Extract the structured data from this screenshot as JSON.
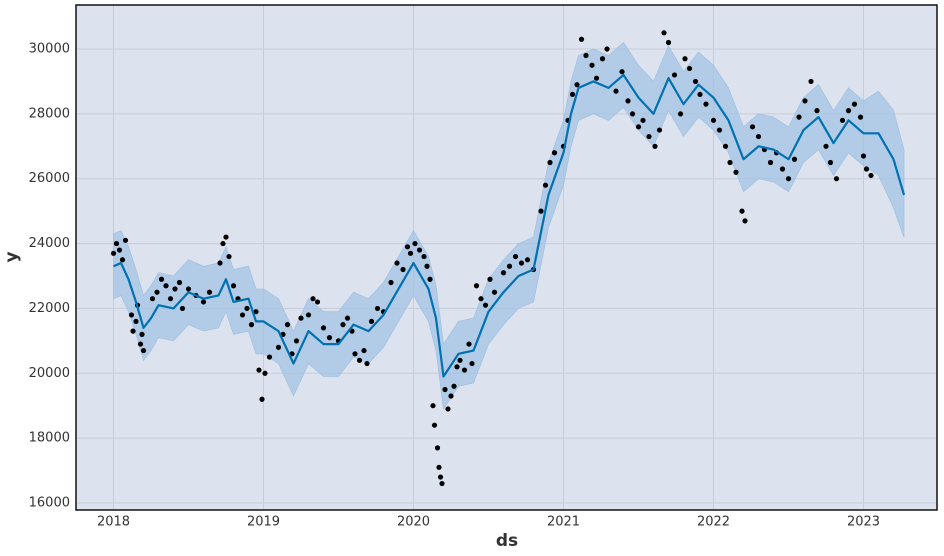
{
  "chart_data": {
    "type": "forecast",
    "x_label": "ds",
    "y_label": "y",
    "xlim": [
      2017.75,
      2023.49
    ],
    "ylim": [
      15784,
      31357
    ],
    "xticks": [
      2018,
      2019,
      2020,
      2021,
      2022,
      2023
    ],
    "yticks": [
      16000,
      18000,
      20000,
      22000,
      24000,
      26000,
      28000,
      30000
    ],
    "grid": true,
    "x": [
      2018.0,
      2018.05,
      2018.1,
      2018.15,
      2018.2,
      2018.25,
      2018.3,
      2018.4,
      2018.5,
      2018.6,
      2018.7,
      2018.75,
      2018.8,
      2018.9,
      2018.95,
      2019.0,
      2019.1,
      2019.2,
      2019.3,
      2019.4,
      2019.5,
      2019.6,
      2019.7,
      2019.8,
      2019.9,
      2020.0,
      2020.1,
      2020.15,
      2020.2,
      2020.3,
      2020.4,
      2020.5,
      2020.6,
      2020.7,
      2020.8,
      2020.9,
      2021.0,
      2021.05,
      2021.1,
      2021.2,
      2021.3,
      2021.4,
      2021.5,
      2021.6,
      2021.7,
      2021.8,
      2021.9,
      2022.0,
      2022.1,
      2022.2,
      2022.3,
      2022.4,
      2022.5,
      2022.6,
      2022.7,
      2022.8,
      2022.9,
      2023.0,
      2023.1,
      2023.2,
      2023.27
    ],
    "series": [
      {
        "role": "yhat",
        "color": "#0072b2",
        "values": [
          23300,
          23400,
          22900,
          22200,
          21400,
          21700,
          22100,
          22000,
          22500,
          22300,
          22400,
          22900,
          22200,
          22300,
          21600,
          21600,
          21300,
          20300,
          21300,
          20900,
          20900,
          21500,
          21300,
          21800,
          22600,
          23400,
          22600,
          21700,
          19900,
          20600,
          20700,
          21900,
          22500,
          23000,
          23200,
          25500,
          26800,
          28000,
          28800,
          29000,
          28800,
          29200,
          28500,
          28000,
          29100,
          28300,
          28900,
          28500,
          27800,
          26600,
          27000,
          26900,
          26600,
          27500,
          27900,
          27100,
          27800,
          27400,
          27400,
          26600,
          25500
        ]
      },
      {
        "role": "upper",
        "color": "#a3c3e3",
        "values": [
          24300,
          24400,
          23900,
          23200,
          22400,
          22700,
          23100,
          23000,
          23500,
          23300,
          23400,
          23900,
          23200,
          23300,
          22600,
          22600,
          22300,
          21300,
          22300,
          21900,
          21900,
          22500,
          22300,
          22800,
          23600,
          24400,
          23600,
          22700,
          20900,
          21600,
          21700,
          22900,
          23500,
          24000,
          24200,
          26500,
          27800,
          29000,
          29800,
          30000,
          29800,
          30200,
          29500,
          29000,
          30100,
          29300,
          29900,
          29500,
          28800,
          27600,
          28000,
          27900,
          27600,
          28500,
          28900,
          28100,
          28800,
          28400,
          28700,
          28100,
          26900
        ]
      },
      {
        "role": "lower",
        "color": "#a3c3e3",
        "values": [
          22300,
          22400,
          21900,
          21200,
          20400,
          20700,
          21100,
          21000,
          21500,
          21300,
          21400,
          21900,
          21200,
          21300,
          20600,
          20600,
          20300,
          19300,
          20300,
          19900,
          19900,
          20500,
          20300,
          20800,
          21600,
          22400,
          21600,
          20700,
          18900,
          19600,
          19700,
          20900,
          21500,
          22000,
          22200,
          24500,
          25800,
          27000,
          27800,
          28000,
          27800,
          28200,
          27500,
          27000,
          28100,
          27300,
          27900,
          27500,
          26800,
          25600,
          26000,
          25900,
          25600,
          26500,
          26900,
          26100,
          26800,
          26400,
          26100,
          25100,
          24200
        ]
      }
    ],
    "points": {
      "color": "#000000",
      "x": [
        2018.0,
        2018.02,
        2018.04,
        2018.06,
        2018.08,
        2018.12,
        2018.13,
        2018.15,
        2018.16,
        2018.18,
        2018.19,
        2018.2,
        2018.26,
        2018.29,
        2018.32,
        2018.35,
        2018.38,
        2018.41,
        2018.44,
        2018.46,
        2018.5,
        2018.55,
        2018.6,
        2018.64,
        2018.71,
        2018.73,
        2018.75,
        2018.77,
        2018.8,
        2018.83,
        2018.86,
        2018.89,
        2018.92,
        2018.95,
        2018.97,
        2018.99,
        2019.01,
        2019.04,
        2019.1,
        2019.13,
        2019.16,
        2019.19,
        2019.22,
        2019.25,
        2019.3,
        2019.33,
        2019.36,
        2019.4,
        2019.44,
        2019.5,
        2019.53,
        2019.56,
        2019.59,
        2019.61,
        2019.64,
        2019.67,
        2019.69,
        2019.72,
        2019.76,
        2019.8,
        2019.85,
        2019.89,
        2019.93,
        2019.96,
        2019.98,
        2020.01,
        2020.04,
        2020.07,
        2020.09,
        2020.11,
        2020.13,
        2020.14,
        2020.16,
        2020.17,
        2020.18,
        2020.19,
        2020.21,
        2020.23,
        2020.25,
        2020.27,
        2020.29,
        2020.31,
        2020.34,
        2020.37,
        2020.39,
        2020.42,
        2020.45,
        2020.48,
        2020.51,
        2020.54,
        2020.6,
        2020.64,
        2020.68,
        2020.72,
        2020.76,
        2020.8,
        2020.85,
        2020.88,
        2020.91,
        2020.94,
        2021.0,
        2021.03,
        2021.06,
        2021.09,
        2021.12,
        2021.15,
        2021.19,
        2021.22,
        2021.26,
        2021.29,
        2021.35,
        2021.39,
        2021.43,
        2021.46,
        2021.5,
        2021.53,
        2021.57,
        2021.61,
        2021.64,
        2021.67,
        2021.7,
        2021.74,
        2021.78,
        2021.81,
        2021.84,
        2021.88,
        2021.91,
        2021.95,
        2022.0,
        2022.04,
        2022.08,
        2022.11,
        2022.15,
        2022.19,
        2022.21,
        2022.26,
        2022.3,
        2022.34,
        2022.38,
        2022.42,
        2022.46,
        2022.5,
        2022.54,
        2022.57,
        2022.61,
        2022.65,
        2022.69,
        2022.75,
        2022.78,
        2022.82,
        2022.86,
        2022.9,
        2022.94,
        2022.98,
        2023.0,
        2023.02,
        2023.05
      ],
      "values": [
        23700,
        24000,
        23800,
        23500,
        24100,
        21800,
        21300,
        21600,
        22100,
        20900,
        21200,
        20700,
        22300,
        22500,
        22900,
        22700,
        22300,
        22600,
        22800,
        22000,
        22600,
        22400,
        22200,
        22500,
        23400,
        24000,
        24200,
        23600,
        22700,
        22300,
        21800,
        22000,
        21500,
        21900,
        20100,
        19200,
        20000,
        20500,
        20800,
        21200,
        21500,
        20600,
        21000,
        21700,
        21800,
        22300,
        22200,
        21400,
        21100,
        21000,
        21500,
        21700,
        21300,
        20600,
        20400,
        20700,
        20300,
        21600,
        22000,
        21900,
        22800,
        23400,
        23200,
        23900,
        23700,
        24000,
        23800,
        23600,
        23300,
        22900,
        19000,
        18400,
        17700,
        17100,
        16800,
        16600,
        19500,
        18900,
        19300,
        19600,
        20200,
        20400,
        20100,
        20900,
        20300,
        22700,
        22300,
        22100,
        22900,
        22500,
        23100,
        23300,
        23600,
        23400,
        23500,
        23200,
        25000,
        25800,
        26500,
        26800,
        27000,
        27800,
        28600,
        28900,
        30300,
        29800,
        29500,
        29100,
        29700,
        30000,
        28700,
        29300,
        28400,
        28000,
        27600,
        27800,
        27300,
        27000,
        27500,
        30500,
        30200,
        29200,
        28000,
        29700,
        29400,
        29000,
        28600,
        28300,
        27800,
        27500,
        27000,
        26500,
        26200,
        25000,
        24700,
        27600,
        27300,
        26900,
        26500,
        26800,
        26300,
        26000,
        26600,
        27900,
        28400,
        29000,
        28100,
        27000,
        26500,
        26000,
        27800,
        28100,
        28300,
        27900,
        26700,
        26300,
        26100
      ]
    }
  }
}
